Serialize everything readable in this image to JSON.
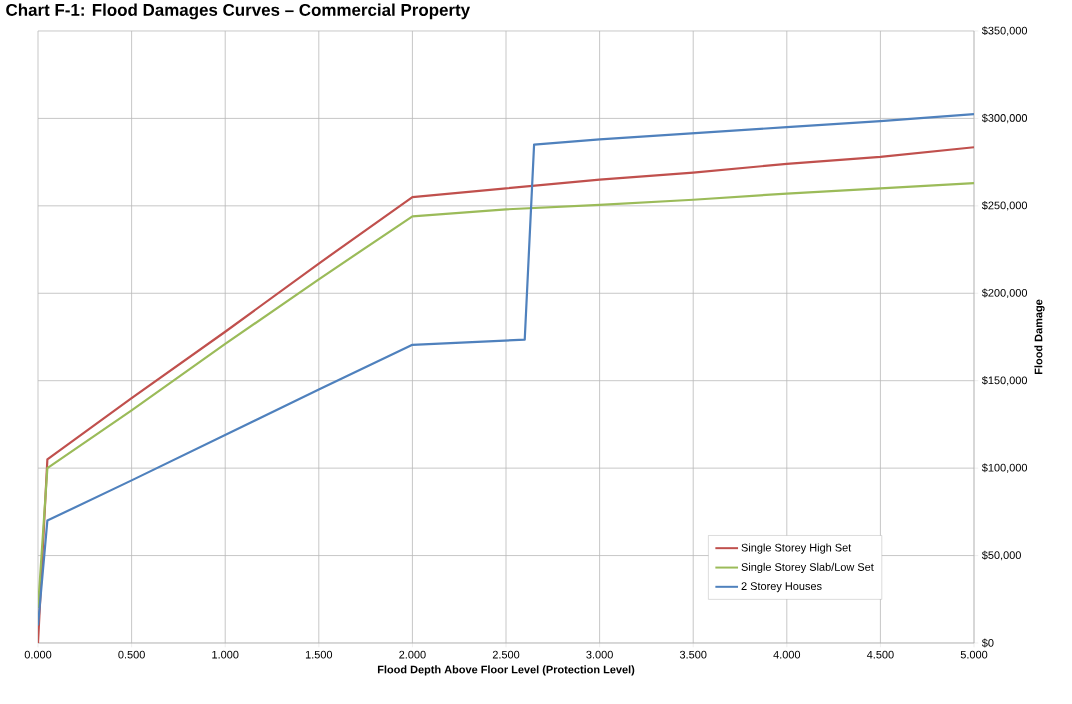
{
  "chart_data": {
    "type": "line",
    "title": "Chart F-1: Flood Damages Curves – Commercial Property",
    "xlabel": "Flood Depth Above Floor Level  (Protection Level)",
    "ylabel": "Flood Damage",
    "xlim": [
      0,
      5
    ],
    "ylim": [
      0,
      350000
    ],
    "xticks": [
      {
        "value": 0,
        "label": "0.000"
      },
      {
        "value": 0.5,
        "label": "0.500"
      },
      {
        "value": 1,
        "label": "1.000"
      },
      {
        "value": 1.5,
        "label": "1.500"
      },
      {
        "value": 2,
        "label": "2.000"
      },
      {
        "value": 2.5,
        "label": "2.500"
      },
      {
        "value": 3,
        "label": "3.000"
      },
      {
        "value": 3.5,
        "label": "3.500"
      },
      {
        "value": 4,
        "label": "4.000"
      },
      {
        "value": 4.5,
        "label": "4.500"
      },
      {
        "value": 5,
        "label": "5.000"
      }
    ],
    "yticks": [
      {
        "value": 0,
        "label": "$0"
      },
      {
        "value": 50000,
        "label": "$50,000"
      },
      {
        "value": 100000,
        "label": "$100,000"
      },
      {
        "value": 150000,
        "label": "$150,000"
      },
      {
        "value": 200000,
        "label": "$200,000"
      },
      {
        "value": 250000,
        "label": "$250,000"
      },
      {
        "value": 300000,
        "label": "$300,000"
      },
      {
        "value": 350000,
        "label": "$350,000"
      }
    ],
    "grid": true,
    "legend": "bottom right",
    "series": [
      {
        "name": "Single Storey High Set",
        "color": "#c0504d",
        "x": [
          0,
          0.05,
          0.5,
          1.0,
          1.5,
          2.0,
          2.5,
          3.0,
          3.5,
          4.0,
          4.5,
          5.0
        ],
        "values": [
          0,
          105000,
          140000,
          178000,
          217000,
          255000,
          260000,
          265000,
          269000,
          274000,
          278000,
          283500
        ]
      },
      {
        "name": "Single Storey Slab/Low Set",
        "color": "#9bbb59",
        "x": [
          0,
          0.05,
          0.5,
          1.0,
          1.5,
          2.0,
          2.5,
          3.0,
          3.5,
          4.0,
          4.5,
          5.0
        ],
        "values": [
          20000,
          100000,
          133000,
          171000,
          208000,
          244000,
          248000,
          250500,
          253500,
          257000,
          260000,
          263000
        ]
      },
      {
        "name": "2 Storey Houses",
        "color": "#4f81bd",
        "x": [
          0,
          0.05,
          0.5,
          1.0,
          1.5,
          2.0,
          2.6,
          2.65,
          3.0,
          3.5,
          4.0,
          4.5,
          5.0
        ],
        "values": [
          10000,
          70000,
          93000,
          119000,
          145000,
          170500,
          173500,
          285000,
          288000,
          291500,
          295000,
          298500,
          302500
        ]
      }
    ]
  }
}
